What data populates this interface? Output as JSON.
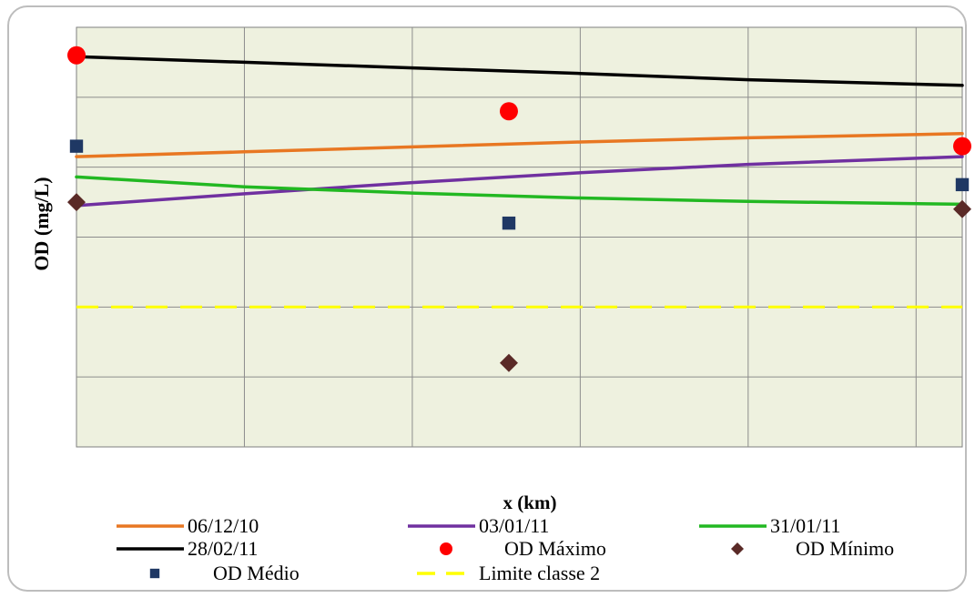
{
  "chart_data": {
    "type": "line",
    "title": "",
    "xlabel": "x (km)",
    "ylabel": "OD (mg/L)",
    "xlim": [
      0,
      10.55
    ],
    "ylim": [
      3,
      9
    ],
    "grid": true,
    "legend_position": "bottom",
    "series": [
      {
        "name": "06/12/10",
        "kind": "line",
        "style": "solid",
        "color": "#e87722",
        "x": [
          0,
          2,
          4,
          6,
          8,
          10.55
        ],
        "y": [
          7.15,
          7.22,
          7.29,
          7.36,
          7.42,
          7.48
        ]
      },
      {
        "name": "03/01/11",
        "kind": "line",
        "style": "solid",
        "color": "#7030a0",
        "x": [
          0,
          2,
          4,
          6,
          8,
          10.55
        ],
        "y": [
          6.45,
          6.62,
          6.78,
          6.92,
          7.04,
          7.15
        ]
      },
      {
        "name": "31/01/11",
        "kind": "line",
        "style": "solid",
        "color": "#22b822",
        "x": [
          0,
          2,
          4,
          6,
          8,
          10.55
        ],
        "y": [
          6.86,
          6.72,
          6.63,
          6.56,
          6.51,
          6.47
        ]
      },
      {
        "name": "28/02/11",
        "kind": "line",
        "style": "solid",
        "color": "#000000",
        "x": [
          0,
          2,
          4,
          6,
          8,
          10.55
        ],
        "y": [
          8.58,
          8.5,
          8.42,
          8.34,
          8.25,
          8.17
        ]
      },
      {
        "name": "OD Máximo",
        "kind": "point",
        "marker": "circle",
        "color": "#ff0000",
        "x": [
          0,
          5.15,
          10.55
        ],
        "y": [
          8.6,
          7.8,
          7.3
        ]
      },
      {
        "name": "OD Mínimo",
        "kind": "point",
        "marker": "diamond",
        "color": "#5a2a27",
        "x": [
          0,
          5.15,
          10.55
        ],
        "y": [
          6.5,
          4.2,
          6.4
        ]
      },
      {
        "name": "OD Médio",
        "kind": "point",
        "marker": "square",
        "color": "#1f3864",
        "x": [
          0,
          5.15,
          10.55
        ],
        "y": [
          7.3,
          6.2,
          6.75
        ]
      },
      {
        "name": "Limite classe 2",
        "kind": "line",
        "style": "dashed",
        "color": "#ffff00",
        "x": [
          0,
          10.55
        ],
        "y": [
          5,
          5
        ]
      }
    ]
  }
}
